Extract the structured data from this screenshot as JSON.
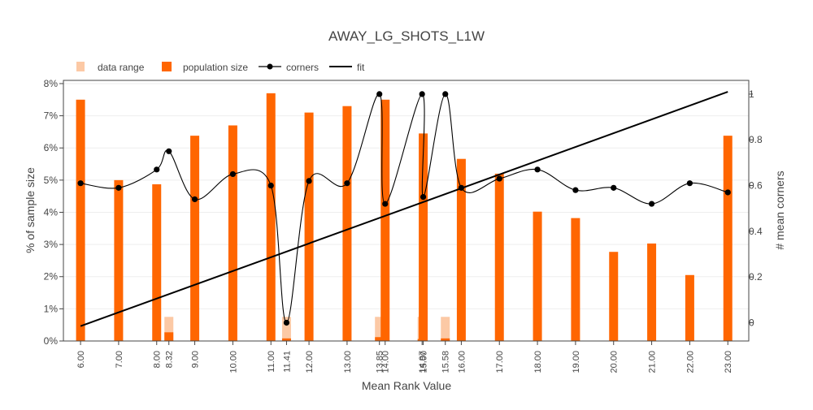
{
  "chart_data": {
    "type": "bar",
    "title": "AWAY_LG_SHOTS_L1W",
    "xlabel": "Mean Rank Value",
    "ylabel": "% of sample size",
    "y2label": "# mean corners",
    "ylim": [
      0,
      8.1
    ],
    "y2lim": [
      -0.08,
      1.06
    ],
    "yticks": [
      "0%",
      "1%",
      "2%",
      "3%",
      "4%",
      "5%",
      "6%",
      "7%",
      "8%"
    ],
    "y2ticks": [
      "0",
      "0.2",
      "0.4",
      "0.6",
      "0.8",
      "1"
    ],
    "legend_position": "top-left",
    "grid": true,
    "colors": {
      "data_range": "#fcc9a5",
      "population_size": "#ff6600",
      "corners": "#000000",
      "fit": "#000000"
    },
    "legend": [
      "data range",
      "population size",
      "corners",
      "fit"
    ],
    "x_ticks": [
      {
        "value": 6.0,
        "label": "6.00"
      },
      {
        "value": 7.0,
        "label": "7.00"
      },
      {
        "value": 8.0,
        "label": "8.00"
      },
      {
        "value": 8.32,
        "label": "8.32"
      },
      {
        "value": 9.0,
        "label": "9.00"
      },
      {
        "value": 10.0,
        "label": "10.00"
      },
      {
        "value": 11.0,
        "label": "11.00"
      },
      {
        "value": 11.41,
        "label": "11.41"
      },
      {
        "value": 12.0,
        "label": "12.00"
      },
      {
        "value": 13.0,
        "label": "13.00"
      },
      {
        "value": 13.85,
        "label": "13.85"
      },
      {
        "value": 14.0,
        "label": "14.00"
      },
      {
        "value": 14.97,
        "label": "14.97"
      },
      {
        "value": 15.0,
        "label": "15.00"
      },
      {
        "value": 15.58,
        "label": "15.58"
      },
      {
        "value": 16.0,
        "label": "16.00"
      },
      {
        "value": 17.0,
        "label": "17.00"
      },
      {
        "value": 18.0,
        "label": "18.00"
      },
      {
        "value": 19.0,
        "label": "19.00"
      },
      {
        "value": 20.0,
        "label": "20.00"
      },
      {
        "value": 21.0,
        "label": "21.00"
      },
      {
        "value": 22.0,
        "label": "22.00"
      },
      {
        "value": 23.0,
        "label": "23.00"
      }
    ],
    "series": [
      {
        "name": "data range",
        "type": "bar",
        "x": [
          8.32,
          11.41,
          13.85,
          14.97,
          15.58
        ],
        "values": [
          0.75,
          0.75,
          0.75,
          0.75,
          0.75
        ]
      },
      {
        "name": "population size",
        "type": "bar",
        "x": [
          6.0,
          7.0,
          8.0,
          8.32,
          9.0,
          10.0,
          11.0,
          11.41,
          12.0,
          13.0,
          13.85,
          14.0,
          14.97,
          15.0,
          15.58,
          16.0,
          17.0,
          18.0,
          19.0,
          20.0,
          21.0,
          22.0,
          23.0
        ],
        "values": [
          7.5,
          5.0,
          4.87,
          0.27,
          6.38,
          6.7,
          7.7,
          0.08,
          7.1,
          7.3,
          0.12,
          7.5,
          0.06,
          6.45,
          0.08,
          5.66,
          5.2,
          4.02,
          3.82,
          2.77,
          3.03,
          2.05,
          6.38
        ]
      },
      {
        "name": "corners",
        "type": "line",
        "axis": "y2",
        "x": [
          6.0,
          7.0,
          8.0,
          8.32,
          9.0,
          10.0,
          11.0,
          11.41,
          12.0,
          13.0,
          13.85,
          14.0,
          14.97,
          15.0,
          15.58,
          16.0,
          17.0,
          18.0,
          19.0,
          20.0,
          21.0,
          22.0,
          23.0
        ],
        "values": [
          0.61,
          0.59,
          0.67,
          0.75,
          0.54,
          0.65,
          0.6,
          0.0,
          0.62,
          0.61,
          1.0,
          0.52,
          1.0,
          0.55,
          1.0,
          0.59,
          0.63,
          0.67,
          0.58,
          0.59,
          0.52,
          0.61,
          0.57
        ]
      },
      {
        "name": "fit",
        "type": "line",
        "axis": "y2",
        "x": [
          6.0,
          23.0
        ],
        "values": [
          -0.015,
          1.01
        ]
      }
    ]
  }
}
